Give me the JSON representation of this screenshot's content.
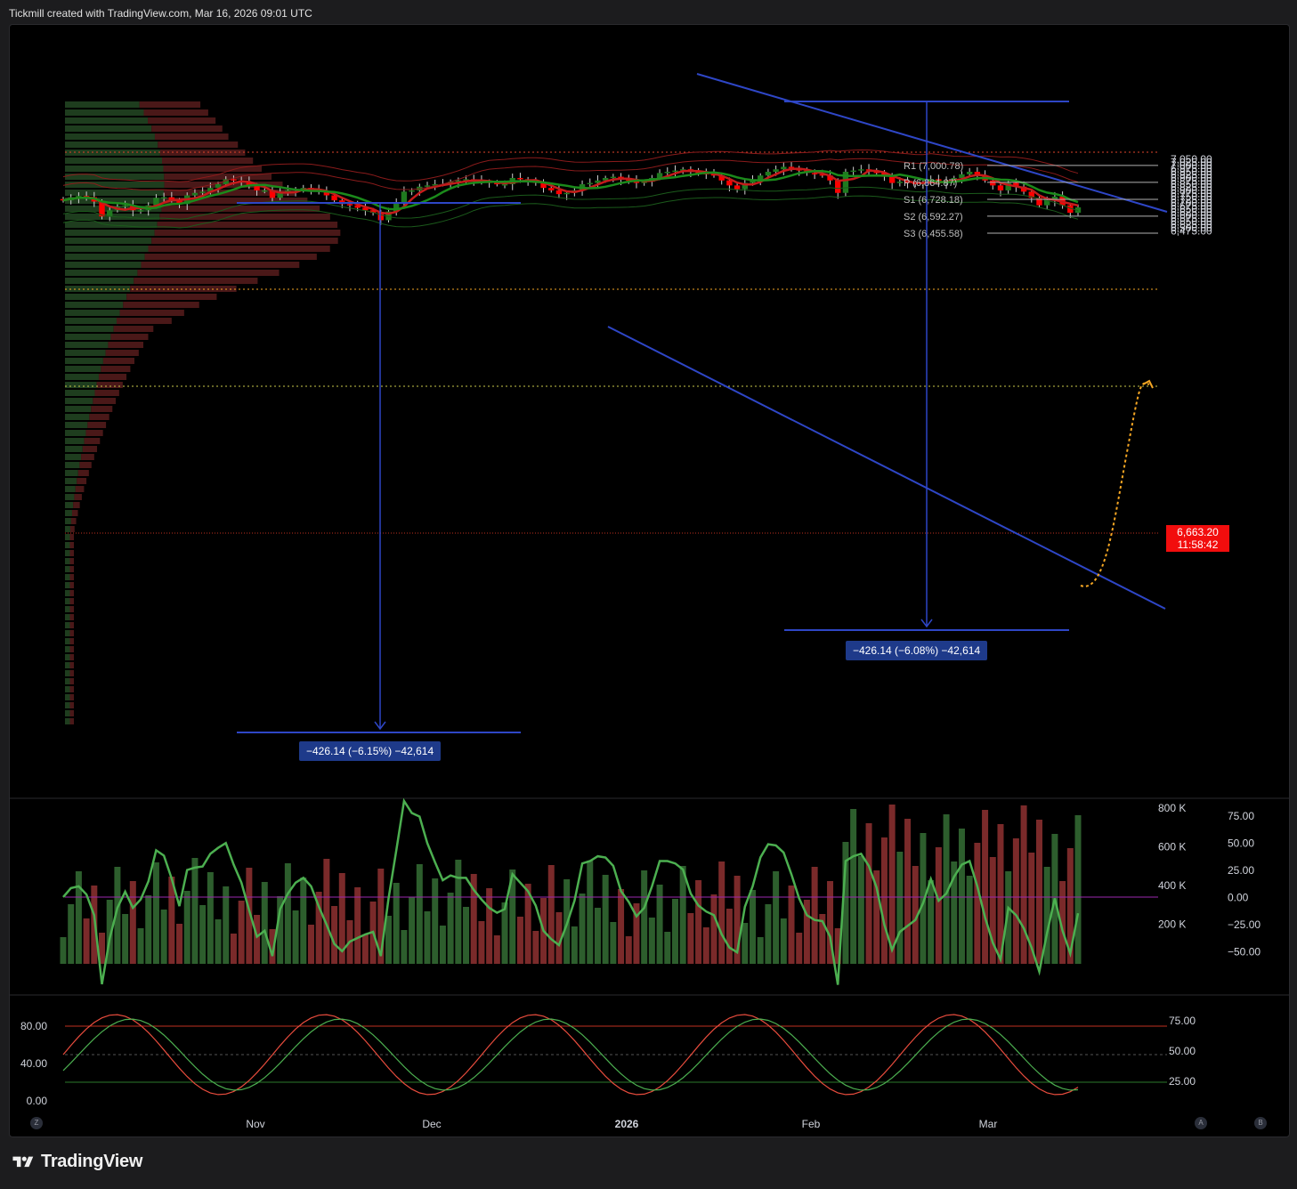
{
  "header": {
    "text": "Tickmill created with TradingView.com, Mar 16, 2026 09:01 UTC"
  },
  "footer": {
    "brand": "TradingView"
  },
  "colors": {
    "up": "#1f7a1f",
    "down": "#ff0000",
    "background": "#000000",
    "trendline": "#2e46c6",
    "measure_box": "#1e3a8a"
  },
  "chart_data": [
    {
      "type": "candlestick",
      "panel": "price",
      "y_axis": {
        "range": [
          6440,
          7070
        ],
        "ticks": [
          "7,050.00",
          "7,025.00",
          "7,000.00",
          "6,975.00",
          "6,950.00",
          "6,925.00",
          "6,900.00",
          "6,875.00",
          "6,850.00",
          "6,825.00",
          "6,800.00",
          "6,775.00",
          "6,750.00",
          "6,725.00",
          "6,700.00",
          "6,675.00",
          "6,650.00",
          "6,625.00",
          "6,600.00",
          "6,575.00",
          "6,550.00",
          "6,525.00",
          "6,500.00",
          "6,475.00"
        ]
      },
      "x_axis": {
        "labels": [
          "Nov",
          "Dec",
          "2026",
          "Feb",
          "Mar"
        ]
      },
      "last_price": "6,663.20",
      "countdown": "11:58:42",
      "pivot_levels": [
        {
          "label": "R1 (7,000.78)",
          "value": 7000.78
        },
        {
          "label": "P (6,864.87)",
          "value": 6864.87
        },
        {
          "label": "S1 (6,728.18)",
          "value": 6728.18
        },
        {
          "label": "S2 (6,592.27)",
          "value": 6592.27
        },
        {
          "label": "S3 (6,455.58)",
          "value": 6455.58
        }
      ],
      "measurements": [
        {
          "label": "−426.14 (−6.15%) −42,614",
          "from": 6930,
          "to": 6505
        },
        {
          "label": "−426.14 (−6.08%) −42,614",
          "from": 7010,
          "to": 6585
        }
      ],
      "closes": [
        6720,
        6745,
        6755,
        6745,
        6710,
        6590,
        6640,
        6670,
        6680,
        6640,
        6640,
        6680,
        6740,
        6745,
        6720,
        6690,
        6760,
        6780,
        6790,
        6820,
        6850,
        6890,
        6880,
        6870,
        6840,
        6800,
        6800,
        6740,
        6790,
        6800,
        6810,
        6820,
        6810,
        6790,
        6760,
        6720,
        6690,
        6680,
        6660,
        6640,
        6620,
        6560,
        6630,
        6700,
        6790,
        6800,
        6830,
        6840,
        6850,
        6850,
        6870,
        6880,
        6890,
        6880,
        6870,
        6860,
        6850,
        6850,
        6900,
        6890,
        6880,
        6860,
        6820,
        6800,
        6770,
        6780,
        6800,
        6850,
        6860,
        6880,
        6900,
        6910,
        6890,
        6880,
        6860,
        6870,
        6900,
        6940,
        6950,
        6960,
        6970,
        6950,
        6940,
        6930,
        6920,
        6880,
        6840,
        6810,
        6860,
        6880,
        6920,
        6950,
        6970,
        6990,
        6980,
        6960,
        6940,
        6930,
        6920,
        6880,
        6780,
        6950,
        6960,
        6970,
        6960,
        6940,
        6910,
        6860,
        6870,
        6860,
        6850,
        6860,
        6890,
        6860,
        6870,
        6900,
        6930,
        6950,
        6920,
        6880,
        6840,
        6800,
        6860,
        6830,
        6790,
        6740,
        6680,
        6720,
        6750,
        6680,
        6620,
        6663.2
      ]
    },
    {
      "type": "bar",
      "panel": "volume_rsi",
      "left_ticks": [
        "800 K",
        "600 K",
        "400 K",
        "200 K"
      ],
      "right_ticks": [
        "75.00",
        "50.00",
        "25.00",
        "0.00",
        "−25.00",
        "−50.00"
      ]
    },
    {
      "type": "line",
      "panel": "stochastic",
      "left_ticks": [
        "80.00",
        "40.00",
        "0.00"
      ],
      "right_ticks": [
        "75.00",
        "50.00",
        "25.00"
      ]
    }
  ],
  "corner_buttons": {
    "left": "Z",
    "right_a": "A",
    "right_b": "B"
  }
}
